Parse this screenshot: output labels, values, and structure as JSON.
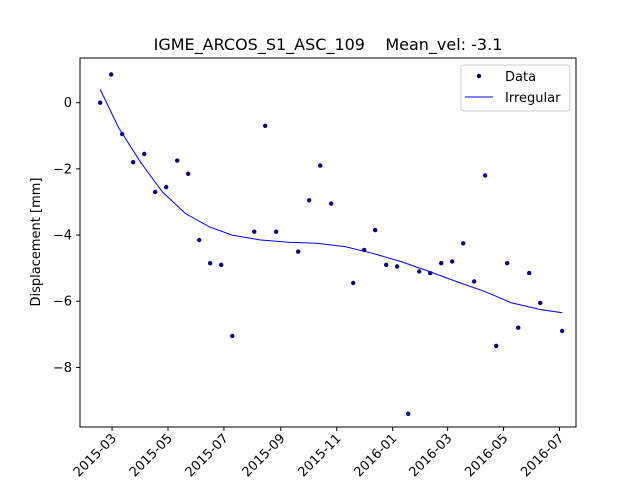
{
  "chart_data": {
    "type": "scatter",
    "title": "IGME_ARCOS_S1_ASC_109    Mean_vel: -3.1",
    "xlabel": "",
    "ylabel": "Displacement [mm]",
    "xlim": [
      "2015-01-25",
      "2016-07-19"
    ],
    "ylim": [
      -9.8,
      1.35
    ],
    "x_ticks": [
      "2015-03",
      "2015-05",
      "2015-07",
      "2015-09",
      "2015-11",
      "2016-01",
      "2016-03",
      "2016-05",
      "2016-07"
    ],
    "y_ticks": [
      0,
      -2,
      -4,
      -6,
      -8
    ],
    "grid": false,
    "legend": {
      "placement": "top-right",
      "entries": [
        "Data",
        "Irregular"
      ]
    },
    "colors": {
      "data": "#00007f",
      "fit": "#0000ff"
    },
    "series": [
      {
        "name": "Data",
        "kind": "scatter",
        "points": [
          [
            "2015-02-16",
            0.0
          ],
          [
            "2015-02-28",
            0.85
          ],
          [
            "2015-03-12",
            -0.95
          ],
          [
            "2015-03-24",
            -1.8
          ],
          [
            "2015-04-05",
            -1.55
          ],
          [
            "2015-04-17",
            -2.7
          ],
          [
            "2015-04-29",
            -2.55
          ],
          [
            "2015-05-11",
            -1.75
          ],
          [
            "2015-05-23",
            -2.15
          ],
          [
            "2015-06-04",
            -4.15
          ],
          [
            "2015-06-16",
            -4.85
          ],
          [
            "2015-06-28",
            -4.9
          ],
          [
            "2015-07-10",
            -7.05
          ],
          [
            "2015-08-03",
            -3.9
          ],
          [
            "2015-08-15",
            -0.7
          ],
          [
            "2015-08-27",
            -3.9
          ],
          [
            "2015-09-20",
            -4.5
          ],
          [
            "2015-10-02",
            -2.95
          ],
          [
            "2015-10-14",
            -1.9
          ],
          [
            "2015-10-26",
            -3.05
          ],
          [
            "2015-11-19",
            -5.45
          ],
          [
            "2015-12-01",
            -4.45
          ],
          [
            "2015-12-13",
            -3.85
          ],
          [
            "2015-12-25",
            -4.9
          ],
          [
            "2016-01-06",
            -4.95
          ],
          [
            "2016-01-18",
            -9.4
          ],
          [
            "2016-01-30",
            -5.1
          ],
          [
            "2016-02-11",
            -5.15
          ],
          [
            "2016-02-23",
            -4.85
          ],
          [
            "2016-03-06",
            -4.8
          ],
          [
            "2016-03-18",
            -4.25
          ],
          [
            "2016-03-30",
            -5.4
          ],
          [
            "2016-04-11",
            -2.2
          ],
          [
            "2016-04-23",
            -7.35
          ],
          [
            "2016-05-05",
            -4.85
          ],
          [
            "2016-05-17",
            -6.8
          ],
          [
            "2016-05-29",
            -5.15
          ],
          [
            "2016-06-10",
            -6.05
          ],
          [
            "2016-07-04",
            -6.9
          ]
        ]
      },
      {
        "name": "Irregular",
        "kind": "line",
        "points": [
          [
            "2015-02-16",
            0.4
          ],
          [
            "2015-03-08",
            -0.75
          ],
          [
            "2015-04-01",
            -1.8
          ],
          [
            "2015-04-25",
            -2.7
          ],
          [
            "2015-05-20",
            -3.35
          ],
          [
            "2015-06-15",
            -3.75
          ],
          [
            "2015-07-10",
            -4.0
          ],
          [
            "2015-08-10",
            -4.15
          ],
          [
            "2015-09-10",
            -4.22
          ],
          [
            "2015-10-10",
            -4.25
          ],
          [
            "2015-11-10",
            -4.35
          ],
          [
            "2015-12-10",
            -4.55
          ],
          [
            "2016-01-10",
            -4.8
          ],
          [
            "2016-02-10",
            -5.1
          ],
          [
            "2016-03-10",
            -5.4
          ],
          [
            "2016-04-10",
            -5.7
          ],
          [
            "2016-05-10",
            -6.05
          ],
          [
            "2016-06-10",
            -6.25
          ],
          [
            "2016-07-04",
            -6.35
          ]
        ]
      }
    ]
  }
}
